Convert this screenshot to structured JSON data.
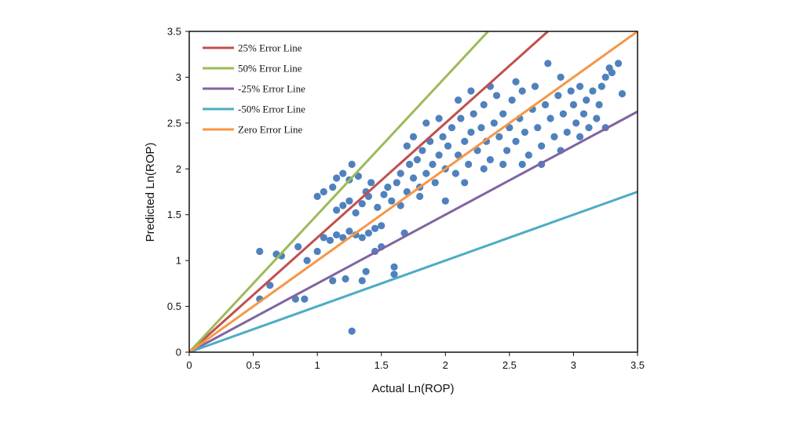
{
  "chart_data": {
    "type": "scatter",
    "xlabel": "Actual Ln(ROP)",
    "ylabel": "Predicted Ln(ROP)",
    "xlim": [
      0,
      3.5
    ],
    "ylim": [
      0,
      3.5
    ],
    "x_ticks": [
      "0",
      "0.5",
      "1",
      "1.5",
      "2",
      "2.5",
      "3",
      "3.5"
    ],
    "y_ticks": [
      "0",
      "0.5",
      "1",
      "1.5",
      "2",
      "2.5",
      "3",
      "3.5"
    ],
    "grid": false,
    "legend_position": "top-left",
    "point_color": "#4f81bd",
    "lines": [
      {
        "name": "25% Error Line",
        "slope": 1.25,
        "color": "#c0504d"
      },
      {
        "name": "50% Error Line",
        "slope": 1.5,
        "color": "#9bbb59"
      },
      {
        "name": "-25% Error Line",
        "slope": 0.75,
        "color": "#8064a2"
      },
      {
        "name": "-50% Error Line",
        "slope": 0.5,
        "color": "#4bacc6"
      },
      {
        "name": "Zero Error Line",
        "slope": 1.0,
        "color": "#f79646"
      }
    ],
    "points": [
      [
        0.55,
        1.1
      ],
      [
        0.55,
        0.58
      ],
      [
        0.63,
        0.73
      ],
      [
        0.68,
        1.07
      ],
      [
        0.72,
        1.05
      ],
      [
        0.83,
        0.58
      ],
      [
        0.9,
        0.58
      ],
      [
        0.85,
        1.15
      ],
      [
        0.92,
        1.0
      ],
      [
        1.0,
        1.1
      ],
      [
        1.05,
        1.25
      ],
      [
        1.1,
        1.22
      ],
      [
        1.15,
        1.28
      ],
      [
        1.2,
        1.25
      ],
      [
        1.25,
        1.32
      ],
      [
        1.3,
        1.28
      ],
      [
        1.35,
        1.25
      ],
      [
        1.4,
        1.3
      ],
      [
        1.45,
        1.35
      ],
      [
        1.5,
        1.38
      ],
      [
        1.12,
        0.78
      ],
      [
        1.22,
        0.8
      ],
      [
        1.27,
        0.23
      ],
      [
        1.35,
        0.78
      ],
      [
        1.38,
        0.88
      ],
      [
        1.45,
        1.1
      ],
      [
        1.5,
        1.15
      ],
      [
        1.6,
        0.93
      ],
      [
        1.6,
        0.85
      ],
      [
        1.68,
        1.3
      ],
      [
        1.0,
        1.7
      ],
      [
        1.05,
        1.75
      ],
      [
        1.12,
        1.8
      ],
      [
        1.15,
        1.9
      ],
      [
        1.2,
        1.95
      ],
      [
        1.25,
        1.88
      ],
      [
        1.27,
        2.05
      ],
      [
        1.32,
        1.92
      ],
      [
        1.38,
        1.75
      ],
      [
        1.42,
        1.85
      ],
      [
        1.15,
        1.55
      ],
      [
        1.2,
        1.6
      ],
      [
        1.25,
        1.65
      ],
      [
        1.3,
        1.52
      ],
      [
        1.35,
        1.62
      ],
      [
        1.4,
        1.7
      ],
      [
        1.47,
        1.58
      ],
      [
        1.52,
        1.72
      ],
      [
        1.55,
        1.8
      ],
      [
        1.58,
        1.65
      ],
      [
        1.62,
        1.85
      ],
      [
        1.65,
        1.95
      ],
      [
        1.7,
        1.75
      ],
      [
        1.72,
        2.05
      ],
      [
        1.75,
        1.9
      ],
      [
        1.78,
        2.1
      ],
      [
        1.8,
        1.8
      ],
      [
        1.82,
        2.2
      ],
      [
        1.85,
        1.95
      ],
      [
        1.88,
        2.3
      ],
      [
        1.9,
        2.05
      ],
      [
        1.92,
        1.85
      ],
      [
        1.95,
        2.15
      ],
      [
        1.98,
        2.35
      ],
      [
        2.0,
        2.0
      ],
      [
        2.02,
        2.25
      ],
      [
        2.05,
        2.45
      ],
      [
        2.08,
        1.95
      ],
      [
        2.1,
        2.15
      ],
      [
        2.12,
        2.55
      ],
      [
        2.15,
        2.3
      ],
      [
        2.18,
        2.05
      ],
      [
        2.2,
        2.4
      ],
      [
        2.22,
        2.6
      ],
      [
        2.25,
        2.2
      ],
      [
        2.28,
        2.45
      ],
      [
        2.3,
        2.7
      ],
      [
        2.32,
        2.3
      ],
      [
        2.35,
        2.1
      ],
      [
        2.38,
        2.5
      ],
      [
        2.4,
        2.8
      ],
      [
        2.42,
        2.35
      ],
      [
        2.45,
        2.6
      ],
      [
        2.48,
        2.2
      ],
      [
        2.5,
        2.45
      ],
      [
        2.52,
        2.75
      ],
      [
        2.55,
        2.3
      ],
      [
        2.58,
        2.55
      ],
      [
        2.6,
        2.85
      ],
      [
        2.62,
        2.4
      ],
      [
        2.65,
        2.15
      ],
      [
        2.68,
        2.65
      ],
      [
        2.7,
        2.9
      ],
      [
        2.72,
        2.45
      ],
      [
        2.75,
        2.25
      ],
      [
        2.78,
        2.7
      ],
      [
        2.8,
        3.15
      ],
      [
        2.82,
        2.55
      ],
      [
        2.85,
        2.35
      ],
      [
        2.88,
        2.8
      ],
      [
        2.9,
        3.0
      ],
      [
        2.92,
        2.6
      ],
      [
        2.95,
        2.4
      ],
      [
        2.98,
        2.85
      ],
      [
        3.0,
        2.7
      ],
      [
        3.02,
        2.5
      ],
      [
        3.05,
        2.9
      ],
      [
        3.08,
        2.6
      ],
      [
        3.1,
        2.75
      ],
      [
        3.12,
        2.45
      ],
      [
        3.15,
        2.85
      ],
      [
        3.18,
        2.55
      ],
      [
        3.2,
        2.7
      ],
      [
        3.22,
        2.9
      ],
      [
        3.25,
        3.0
      ],
      [
        3.28,
        3.1
      ],
      [
        3.3,
        3.05
      ],
      [
        3.35,
        3.15
      ],
      [
        3.38,
        2.82
      ],
      [
        3.25,
        2.45
      ],
      [
        2.1,
        2.75
      ],
      [
        1.95,
        2.55
      ],
      [
        1.85,
        2.5
      ],
      [
        2.2,
        2.85
      ],
      [
        1.75,
        2.35
      ],
      [
        1.7,
        2.25
      ],
      [
        2.55,
        2.95
      ],
      [
        2.35,
        2.9
      ],
      [
        2.0,
        1.65
      ],
      [
        2.15,
        1.85
      ],
      [
        2.3,
        2.0
      ],
      [
        2.45,
        2.05
      ],
      [
        2.6,
        2.05
      ],
      [
        2.75,
        2.05
      ],
      [
        2.9,
        2.2
      ],
      [
        3.05,
        2.35
      ],
      [
        1.65,
        1.6
      ],
      [
        1.8,
        1.7
      ]
    ]
  }
}
